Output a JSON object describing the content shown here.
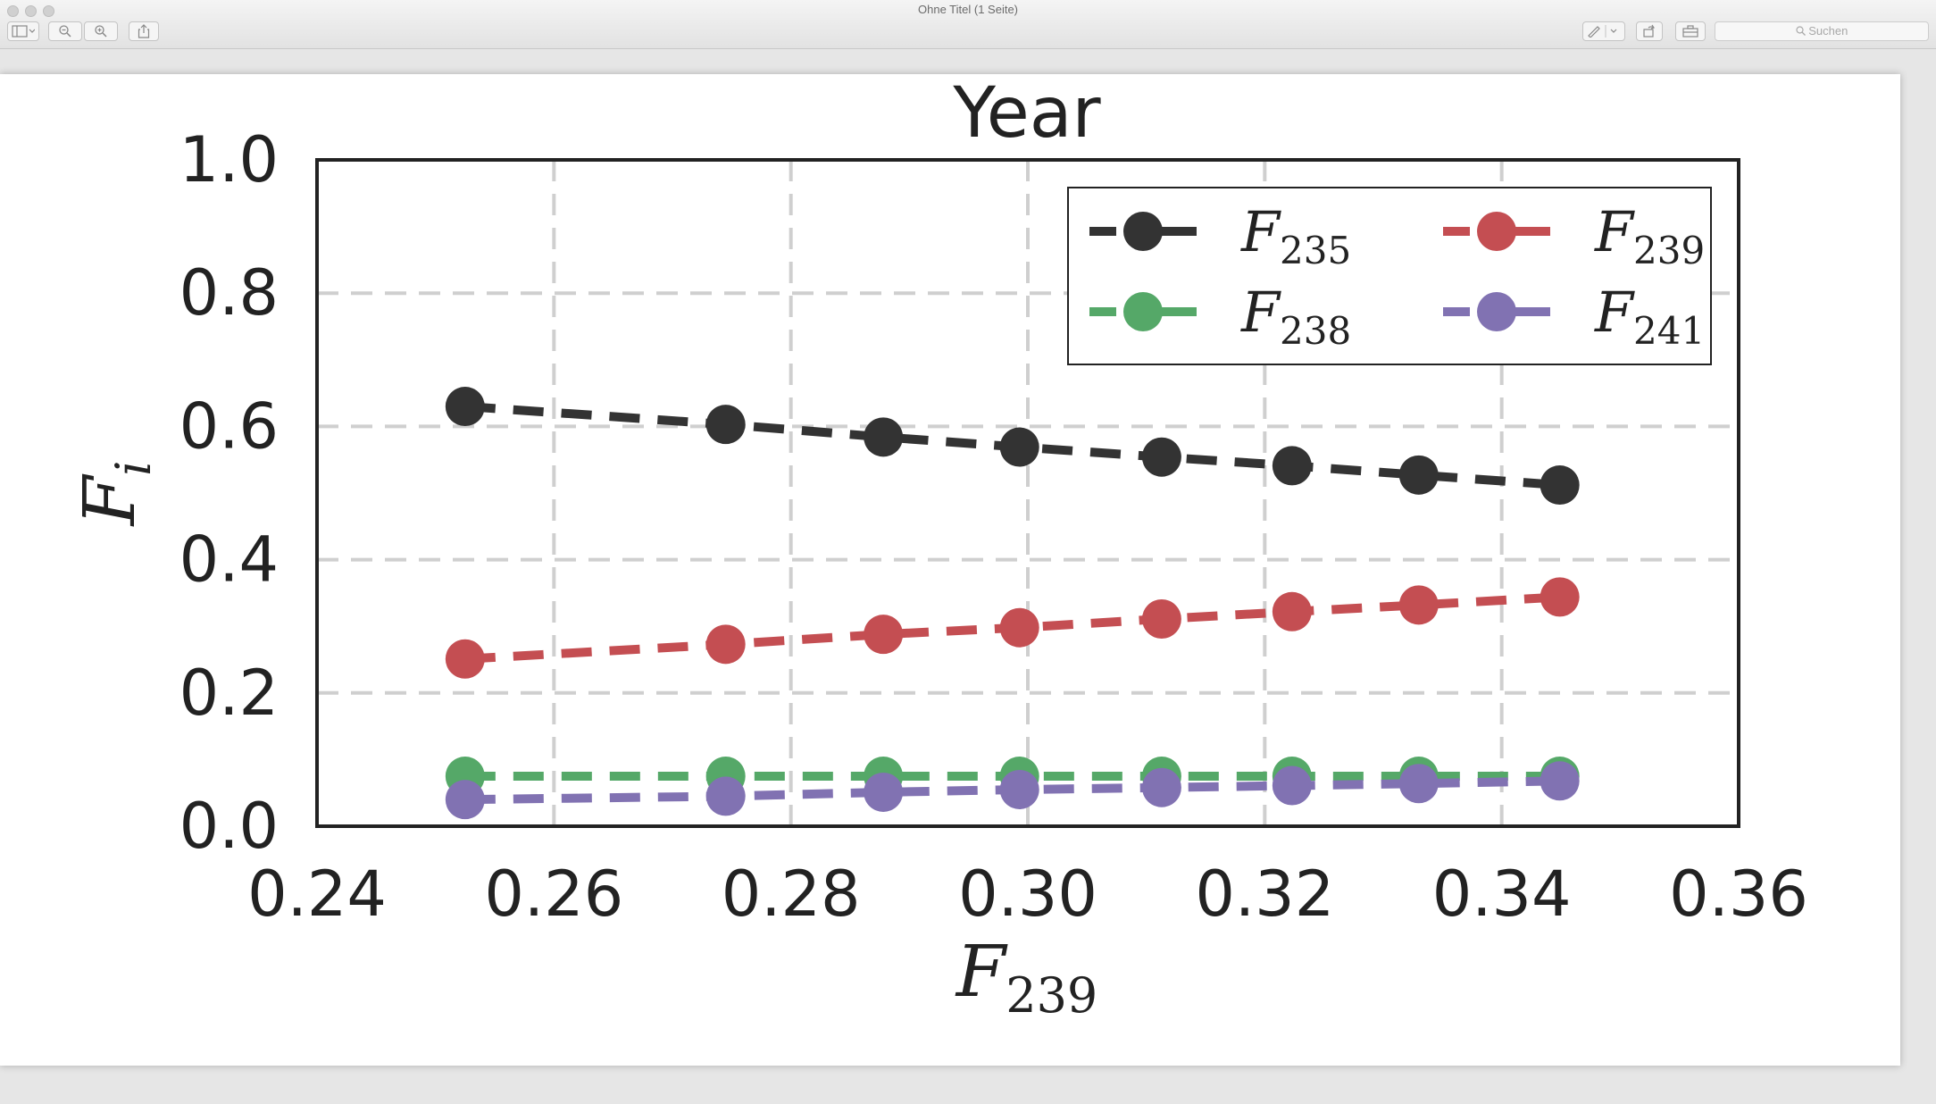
{
  "window": {
    "title": "Ohne Titel (1 Seite)",
    "toolbar": {
      "sidebar_icon": "sidebar-icon",
      "zoom_out_icon": "zoom-out-icon",
      "zoom_in_icon": "zoom-in-icon",
      "share_icon": "share-icon",
      "markup_icon": "pen-icon",
      "rotate_icon": "rotate-icon",
      "toolbox_icon": "toolbox-icon",
      "search_placeholder": "Suchen",
      "search_icon": "search-icon"
    }
  },
  "chart_data": {
    "type": "line",
    "title": "Year",
    "xlabel": {
      "base": "F",
      "sub": "239"
    },
    "ylabel": {
      "base": "F",
      "sub": "i"
    },
    "xlim": [
      0.24,
      0.36
    ],
    "ylim": [
      0.0,
      1.0
    ],
    "xticks": [
      "0.24",
      "0.26",
      "0.28",
      "0.30",
      "0.32",
      "0.34",
      "0.36"
    ],
    "yticks": [
      "0.0",
      "0.2",
      "0.4",
      "0.6",
      "0.8",
      "1.0"
    ],
    "grid": true,
    "legend_placement": "upper-right",
    "x": [
      0.2525,
      0.2745,
      0.2878,
      0.2993,
      0.3113,
      0.3223,
      0.333,
      0.3449
    ],
    "series": [
      {
        "name": {
          "base": "F",
          "sub": "235"
        },
        "color": "#333333",
        "values": [
          0.63,
          0.603,
          0.584,
          0.569,
          0.554,
          0.541,
          0.527,
          0.512
        ]
      },
      {
        "name": {
          "base": "F",
          "sub": "238"
        },
        "color": "#55a868",
        "values": [
          0.075,
          0.075,
          0.075,
          0.075,
          0.075,
          0.075,
          0.075,
          0.075
        ]
      },
      {
        "name": {
          "base": "F",
          "sub": "239"
        },
        "color": "#c44e52",
        "values": [
          0.251,
          0.273,
          0.288,
          0.298,
          0.311,
          0.322,
          0.332,
          0.344
        ]
      },
      {
        "name": {
          "base": "F",
          "sub": "241"
        },
        "color": "#8172b2",
        "values": [
          0.04,
          0.045,
          0.051,
          0.055,
          0.058,
          0.061,
          0.064,
          0.068
        ]
      }
    ]
  }
}
